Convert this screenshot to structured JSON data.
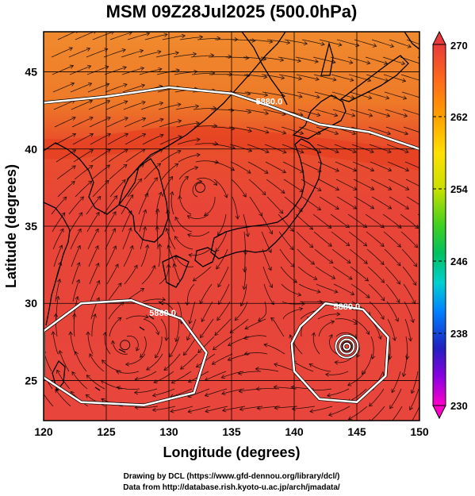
{
  "chart_data": {
    "type": "heatmap",
    "title": "MSM 09Z28Jul2025 (500.0hPa)",
    "xlabel": "Longitude (degrees)",
    "ylabel": "Latitude  (degrees)",
    "xlim": [
      120,
      150
    ],
    "ylim": [
      22.4,
      47.6
    ],
    "x_ticks": [
      120,
      125,
      130,
      135,
      140,
      145,
      150
    ],
    "y_ticks": [
      25,
      30,
      35,
      40,
      45
    ],
    "grid": true,
    "colorbar": {
      "range": [
        230,
        270
      ],
      "ticks": [
        270,
        262,
        254,
        246,
        238,
        230
      ],
      "colors": [
        "#ff00c8",
        "#8a00e0",
        "#2020c0",
        "#0080ff",
        "#00d0d0",
        "#00c060",
        "#40d020",
        "#c8e000",
        "#ffe000",
        "#ffa000",
        "#ff6a1a",
        "#e83a3a"
      ]
    },
    "field": {
      "description_values": "temperature (K)",
      "bands": [
        {
          "lat_from": 47.6,
          "lat_to": 43,
          "value": 266
        },
        {
          "lat_from": 43,
          "lat_to": 41,
          "value": 267
        },
        {
          "lat_from": 41,
          "lat_to": 22.4,
          "value": 268
        }
      ]
    },
    "contours": [
      {
        "label": "5880.0",
        "type": "line",
        "points": [
          [
            120,
            43.0
          ],
          [
            125,
            43.4
          ],
          [
            130,
            44.0
          ],
          [
            135,
            43.6
          ],
          [
            138,
            42.8
          ],
          [
            142,
            41.6
          ],
          [
            146,
            41.1
          ],
          [
            150,
            40.0
          ]
        ],
        "label_at": [
          138,
          42.9
        ]
      },
      {
        "label": "5880.0",
        "type": "closed",
        "points": [
          [
            120,
            28.2
          ],
          [
            123,
            30.0
          ],
          [
            127,
            30.2
          ],
          [
            131,
            29.0
          ],
          [
            133,
            26.8
          ],
          [
            132,
            24.2
          ],
          [
            128,
            23.4
          ],
          [
            123,
            23.6
          ],
          [
            120,
            25.2
          ]
        ],
        "label_at": [
          129.5,
          29.2
        ]
      },
      {
        "label": "5880.0",
        "type": "closed",
        "points": [
          [
            140.5,
            28.5
          ],
          [
            142.5,
            30.0
          ],
          [
            145.5,
            29.6
          ],
          [
            147.5,
            27.8
          ],
          [
            147.3,
            25.3
          ],
          [
            145.0,
            23.6
          ],
          [
            142.0,
            23.8
          ],
          [
            140.0,
            25.6
          ],
          [
            139.8,
            27.4
          ]
        ],
        "label_at": [
          144.2,
          29.6
        ]
      }
    ],
    "lows": [
      {
        "lon": 132.5,
        "lat": 37.5
      },
      {
        "lon": 126.5,
        "lat": 27.3
      },
      {
        "lon": 144.2,
        "lat": 27.2
      }
    ]
  },
  "credits": {
    "line1": "Drawing by DCL (https://www.gfd-dennou.org/library/dcl/)",
    "line2": "Data from http://database.rish.kyoto-u.ac.jp/arch/jmadata/"
  }
}
